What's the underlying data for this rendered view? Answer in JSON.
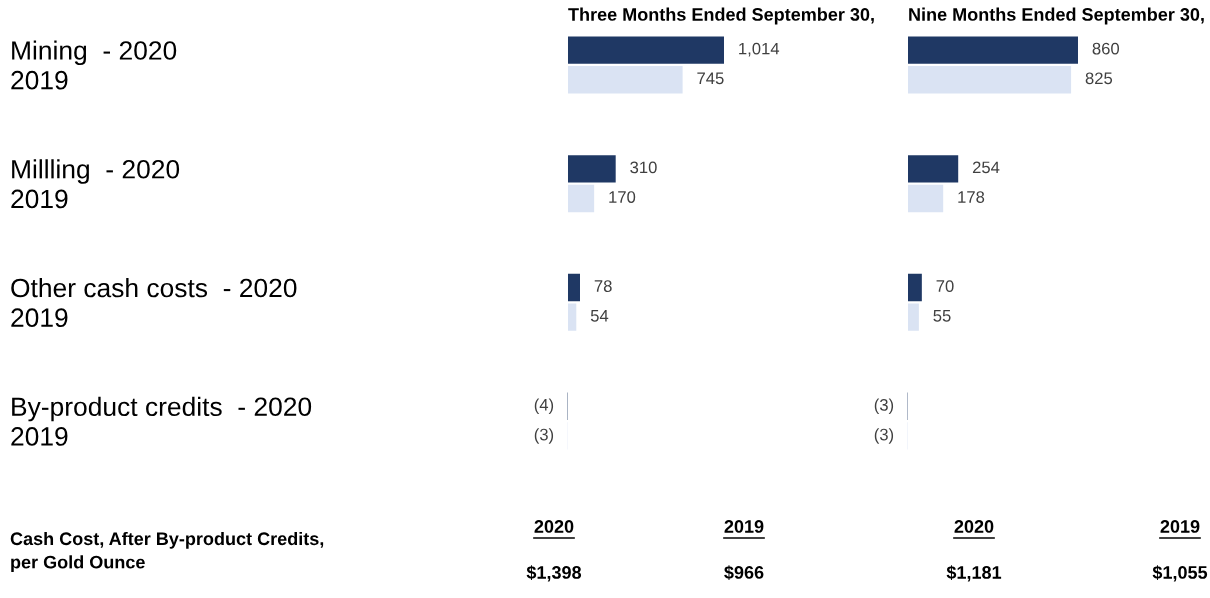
{
  "chart_data": [
    {
      "type": "bar",
      "orientation": "horizontal",
      "title": "Three Months Ended September 30,",
      "tick_labels": "y",
      "categories": [
        "Mining  - 2020",
        "2019",
        null,
        null,
        "Millling  - 2020",
        "2019",
        null,
        null,
        "Other cash costs  - 2020",
        "2019",
        null,
        null,
        "By-product credits  - 2020",
        "2019"
      ],
      "values": [
        1014,
        745,
        null,
        null,
        310,
        170,
        null,
        null,
        78,
        54,
        null,
        null,
        -4,
        -3
      ],
      "value_labels": [
        "1,014",
        "745",
        null,
        null,
        "310",
        "170",
        null,
        null,
        "78",
        "54",
        null,
        null,
        "(4)",
        "(3)"
      ],
      "colors": [
        "#1f3864",
        "#dae3f3",
        null,
        null,
        "#1f3864",
        "#dae3f3",
        null,
        null,
        "#1f3864",
        "#dae3f3",
        null,
        null,
        "#1f3864",
        "#dae3f3"
      ],
      "annotations": [
        "Cash Cost, After By-product Credits,\nper Gold Ounce",
        "2020",
        "2019",
        "$1,398",
        "$966"
      ]
    },
    {
      "type": "bar",
      "orientation": "horizontal",
      "title": "Nine Months Ended September 30,",
      "tick_labels": false,
      "categories": [
        null,
        null,
        null,
        null,
        null,
        null,
        null,
        null,
        null,
        null,
        null,
        null,
        null,
        null
      ],
      "values": [
        860,
        825,
        null,
        null,
        254,
        178,
        null,
        null,
        70,
        55,
        null,
        null,
        -3,
        -3
      ],
      "value_labels": [
        "860",
        "825",
        null,
        null,
        "254",
        "178",
        null,
        null,
        "70",
        "55",
        null,
        null,
        "(3)",
        "(3)"
      ],
      "colors": [
        "#1f3864",
        "#dae3f3",
        null,
        null,
        "#1f3864",
        "#dae3f3",
        null,
        null,
        "#1f3864",
        "#dae3f3",
        null,
        null,
        "#1f3864",
        "#dae3f3"
      ],
      "annotations": [
        "2020",
        "2019",
        "$1,181",
        "$1,055"
      ]
    }
  ]
}
